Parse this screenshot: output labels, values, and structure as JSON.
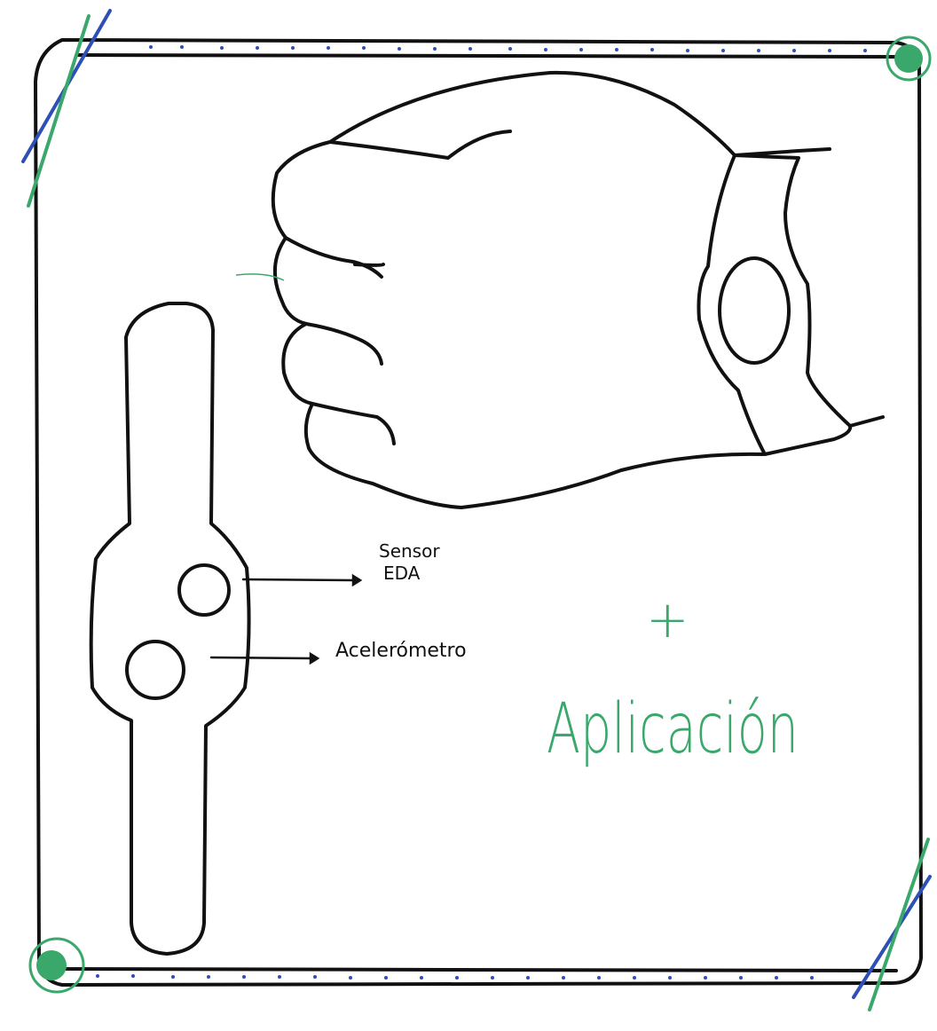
{
  "labels": {
    "sensor_line1": "Sensor",
    "sensor_line2": "EDA",
    "accelerometer": "Acelerómetro",
    "plus": "+",
    "app": "Aplicación"
  },
  "colors": {
    "ink": "#111111",
    "green": "#3aa86b",
    "blue": "#2e4fb5"
  }
}
